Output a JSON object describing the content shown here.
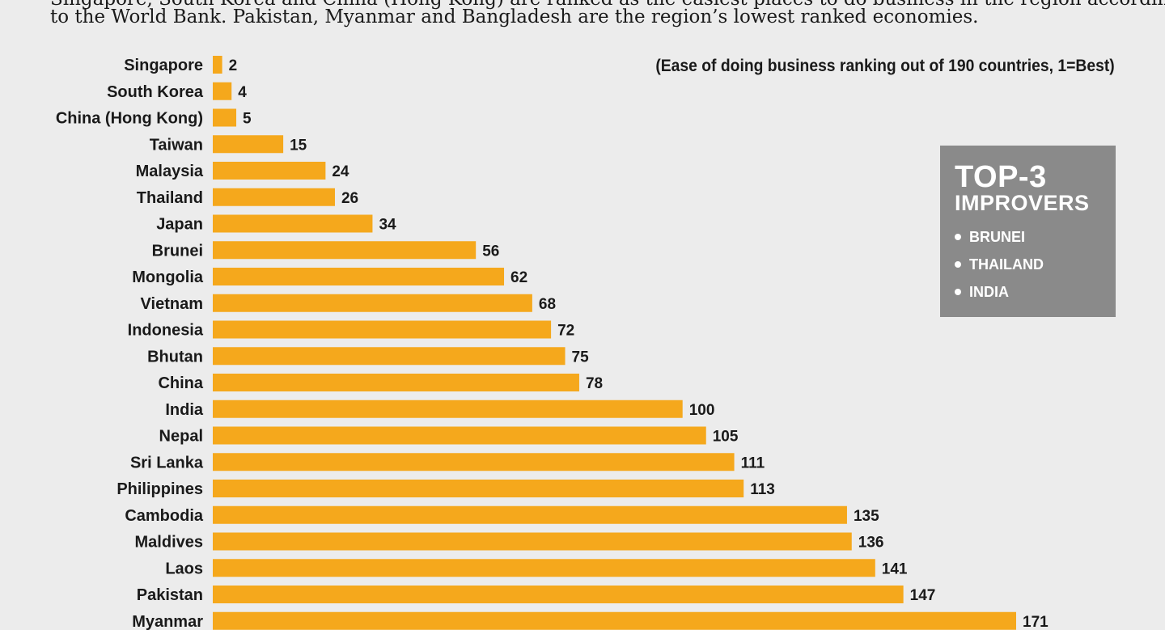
{
  "intro": {
    "line_top_partial": "Singapore, South Korea and China (Hong Kong) are ranked as the easiest places to do business in the region according",
    "line_bottom": "to the World Bank. Pakistan, Myanmar and Bangladesh are the region’s lowest ranked economies."
  },
  "chart_data": {
    "type": "bar",
    "orientation": "horizontal",
    "subtitle": "(Ease of doing business ranking out of 190 countries, 1=Best)",
    "categories": [
      "Singapore",
      "South Korea",
      "China (Hong Kong)",
      "Taiwan",
      "Malaysia",
      "Thailand",
      "Japan",
      "Brunei",
      "Mongolia",
      "Vietnam",
      "Indonesia",
      "Bhutan",
      "China",
      "India",
      "Nepal",
      "Sri Lanka",
      "Philippines",
      "Cambodia",
      "Maldives",
      "Laos",
      "Pakistan",
      "Myanmar"
    ],
    "values": [
      2,
      4,
      5,
      15,
      24,
      26,
      34,
      56,
      62,
      68,
      72,
      75,
      78,
      100,
      105,
      111,
      113,
      135,
      136,
      141,
      147,
      171
    ],
    "xlim": [
      0,
      171
    ],
    "grid": false,
    "legend": "none",
    "bar_color": "#f5a81c"
  },
  "improvers": {
    "title": "TOP-3",
    "subtitle": "IMPROVERS",
    "items": [
      "BRUNEI",
      "THAILAND",
      "INDIA"
    ]
  }
}
